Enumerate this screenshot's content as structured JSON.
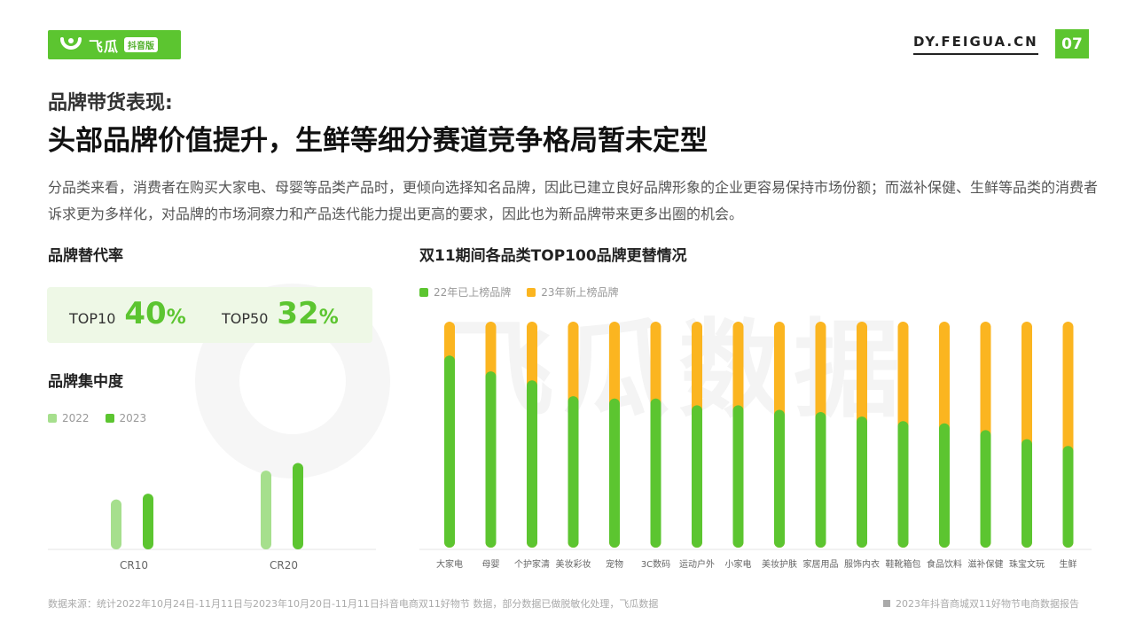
{
  "header": {
    "logo_text": "飞瓜",
    "logo_tag": "抖音版",
    "site": "DY.FEIGUA.CN",
    "page_number": "07"
  },
  "subtitle": "品牌带货表现:",
  "title": "头部品牌价值提升，生鲜等细分赛道竞争格局暂未定型",
  "description": "分品类来看，消费者在购买大家电、母婴等品类产品时，更倾向选择知名品牌，因此已建立良好品牌形象的企业更容易保持市场份额；而滋补保健、生鲜等品类的消费者诉求更为多样化，对品牌的市场洞察力和产品迭代能力提出更高的要求，因此也为新品牌带来更多出圈的机会。",
  "watermark": "飞瓜数据",
  "replacement": {
    "section_title": "品牌替代率",
    "items": [
      {
        "label": "TOP10",
        "value": "40",
        "unit": "%"
      },
      {
        "label": "TOP50",
        "value": "32",
        "unit": "%"
      }
    ]
  },
  "concentration": {
    "section_title": "品牌集中度"
  },
  "turnover": {
    "section_title": "双11期间各品类TOP100品牌更替情况"
  },
  "chart_data": [
    {
      "type": "bar",
      "title": "品牌集中度",
      "categories": [
        "CR10",
        "CR20"
      ],
      "series": [
        {
          "name": "2022",
          "values": [
            0.26,
            0.41
          ],
          "color": "#a6df8d"
        },
        {
          "name": "2023",
          "values": [
            0.29,
            0.45
          ],
          "color": "#5cc530"
        }
      ],
      "ylim": [
        0,
        0.6
      ],
      "legend": "top-left",
      "grid": false
    },
    {
      "type": "bar",
      "stacked": true,
      "title": "双11期间各品类TOP100品牌更替情况",
      "categories": [
        "大家电",
        "母婴",
        "个护家清",
        "美妆彩妆",
        "宠物",
        "3C数码",
        "运动户外",
        "小家电",
        "美妆护肤",
        "家居用品",
        "服饰内衣",
        "鞋靴箱包",
        "食品饮料",
        "滋补保健",
        "珠宝文玩",
        "生鲜"
      ],
      "series": [
        {
          "name": "22年已上榜品牌",
          "values": [
            85,
            78,
            74,
            67,
            66,
            66,
            63,
            63,
            61,
            60,
            58,
            56,
            55,
            52,
            48,
            45
          ],
          "color": "#5cc530"
        },
        {
          "name": "23年新上榜品牌",
          "values": [
            15,
            22,
            26,
            33,
            34,
            34,
            37,
            37,
            39,
            40,
            42,
            44,
            45,
            48,
            52,
            55
          ],
          "color": "#fbb520"
        }
      ],
      "ylim": [
        0,
        100
      ],
      "legend": "top-left",
      "grid": false
    }
  ],
  "footer": {
    "source": "数据来源：统计2022年10月24日-11月11日与2023年10月20日-11月11日抖音电商双11好物节 数据，部分数据已做脱敏化处理，飞瓜数据",
    "report": "2023年抖音商城双11好物节电商数据报告"
  },
  "icons": [
    "feigua-logo-icon"
  ],
  "colors": {
    "brand_green": "#5cc530",
    "light_green": "#a6df8d",
    "orange": "#fbb520"
  }
}
